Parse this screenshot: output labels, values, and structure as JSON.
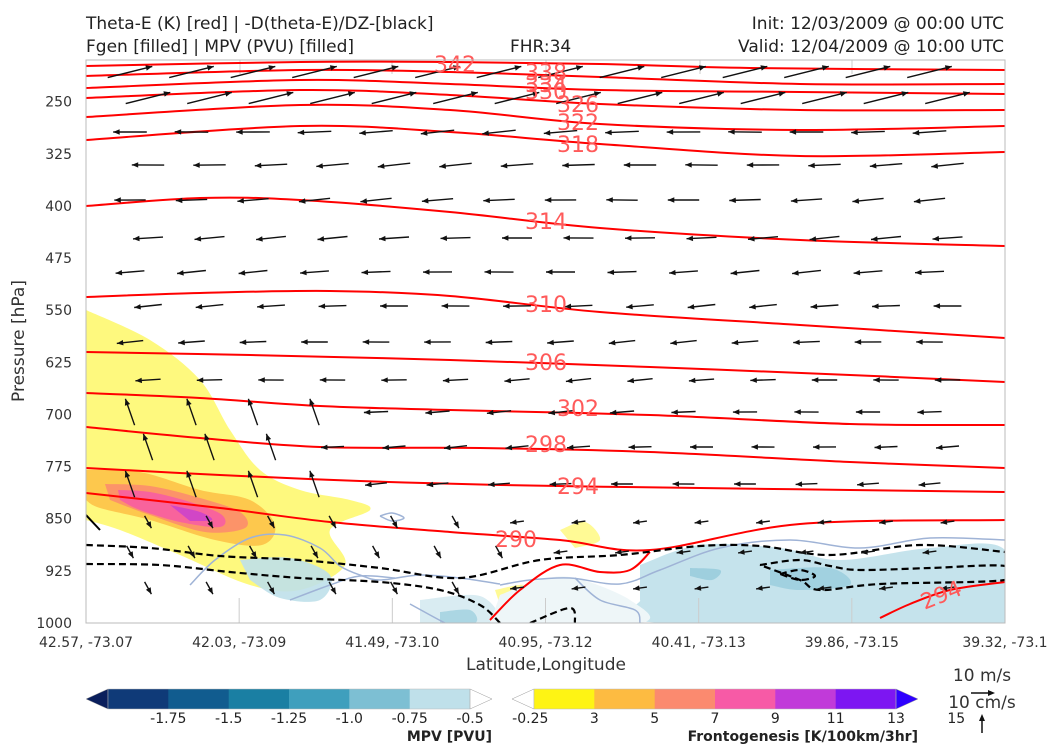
{
  "header": {
    "title_line1": "Theta-E (K) [red] | -D(theta-E)/DZ-[black]",
    "title_line2": "Fgen [filled] | MPV (PVU) [filled]",
    "fhr": "FHR:34",
    "init": "Init: 12/03/2009 @ 00:00 UTC",
    "valid": "Valid: 12/04/2009 @ 10:00 UTC"
  },
  "chart_data": {
    "type": "cross-section",
    "xlabel": "Latitude,Longitude",
    "ylabel": "Pressure [hPa]",
    "x_ticks": [
      "42.57, -73.07",
      "42.03, -73.09",
      "41.49, -73.10",
      "40.95, -73.12",
      "40.41, -73.13",
      "39.86, -73.15",
      "39.32, -73.1"
    ],
    "y_ticks": [
      250,
      325,
      400,
      475,
      550,
      625,
      700,
      775,
      850,
      925,
      1000
    ],
    "ylim": [
      1000,
      190
    ],
    "y_scale": "linear, inverted",
    "theta_e_contours": {
      "color": "#ff0000",
      "levels": [
        342,
        338,
        334,
        330,
        326,
        322,
        318,
        314,
        310,
        306,
        302,
        298,
        294,
        290,
        294
      ],
      "labels": [
        "342",
        "338",
        "334",
        "330",
        "326",
        "322",
        "318",
        "314",
        "310",
        "306",
        "302",
        "298",
        "294",
        "290",
        "294"
      ]
    },
    "wind_reference": {
      "speed_label": "10 m/s",
      "vertical_label": "10 cm/s"
    },
    "colorbars": [
      {
        "title": "MPV [PVU]",
        "ticks": [
          "-1.75",
          "-1.5",
          "-1.25",
          "-1.0",
          "-0.75",
          "-0.5",
          "-0.25"
        ],
        "colors": [
          "#0a1f5c",
          "#0f3a78",
          "#115c8f",
          "#1a7fa3",
          "#3f9fbd",
          "#7dbfd3",
          "#bfe0ea",
          "#ffffff"
        ]
      },
      {
        "title": "Frontogenesis [K/100km/3hr]",
        "ticks": [
          "3",
          "5",
          "7",
          "9",
          "11",
          "13",
          "15"
        ],
        "colors": [
          "#ffffff",
          "#fef414",
          "#fdbb41",
          "#fb8a6f",
          "#f75aa6",
          "#c13ad9",
          "#7d16f2",
          "#2e00ff"
        ]
      }
    ]
  }
}
